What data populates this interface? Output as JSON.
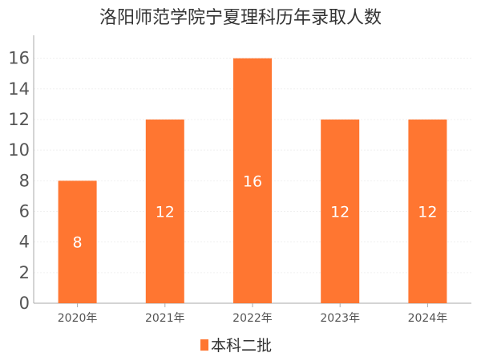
{
  "chart_data": {
    "type": "bar",
    "title": "洛阳师范学院宁夏理科历年录取人数",
    "categories": [
      "2020年",
      "2021年",
      "2022年",
      "2023年",
      "2024年"
    ],
    "series": [
      {
        "name": "本科二批",
        "values": [
          8,
          12,
          16,
          12,
          12
        ],
        "color": "#ff7631"
      }
    ],
    "y_ticks": [
      "0",
      "2",
      "4",
      "6",
      "8",
      "10",
      "12",
      "14",
      "16"
    ],
    "ylim": [
      0,
      17.5
    ],
    "grid": true,
    "legend_position": "bottom-center",
    "data_labels": true
  }
}
